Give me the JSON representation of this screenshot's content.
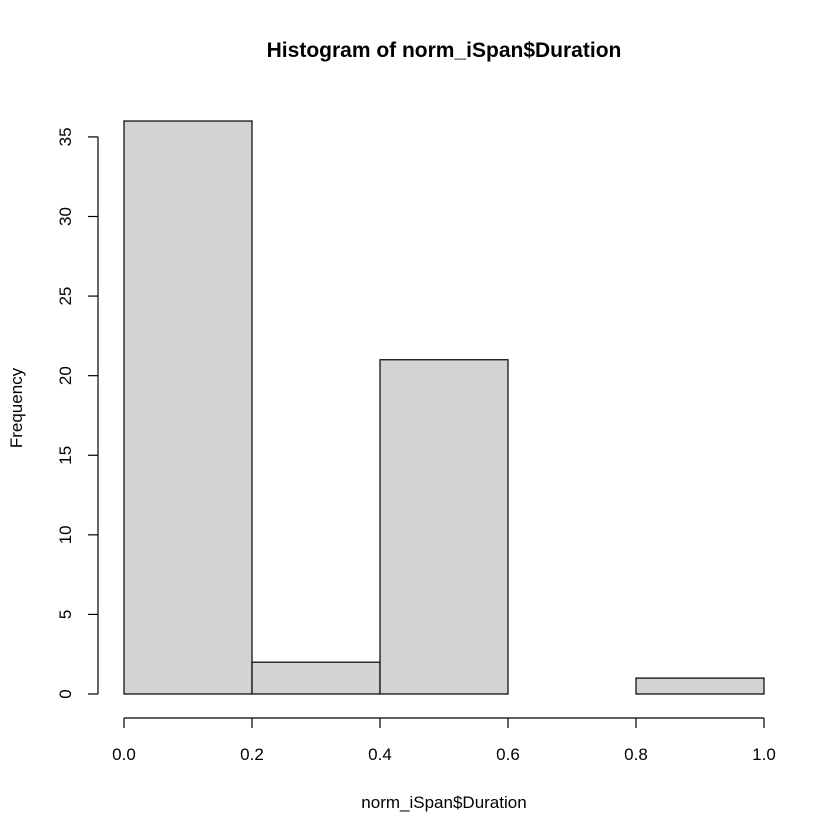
{
  "chart_data": {
    "type": "bar",
    "title": "Histogram of norm_iSpan$Duration",
    "xlabel": "norm_iSpan$Duration",
    "ylabel": "Frequency",
    "bins": [
      {
        "start": 0.0,
        "end": 0.2,
        "count": 36
      },
      {
        "start": 0.2,
        "end": 0.4,
        "count": 2
      },
      {
        "start": 0.4,
        "end": 0.6,
        "count": 21
      },
      {
        "start": 0.6,
        "end": 0.8,
        "count": 0
      },
      {
        "start": 0.8,
        "end": 1.0,
        "count": 1
      }
    ],
    "xlim": [
      0.0,
      1.0
    ],
    "ylim": [
      0,
      36
    ],
    "xticks": [
      0.0,
      0.2,
      0.4,
      0.6,
      0.8,
      1.0
    ],
    "xtick_labels": [
      "0.0",
      "0.2",
      "0.4",
      "0.6",
      "0.8",
      "1.0"
    ],
    "yticks": [
      0,
      5,
      10,
      15,
      20,
      25,
      30,
      35
    ],
    "ytick_labels": [
      "0",
      "5",
      "10",
      "15",
      "20",
      "25",
      "30",
      "35"
    ],
    "bar_color": "#d3d3d3",
    "edge_color": "#000000",
    "grid": false,
    "legend": "none"
  }
}
